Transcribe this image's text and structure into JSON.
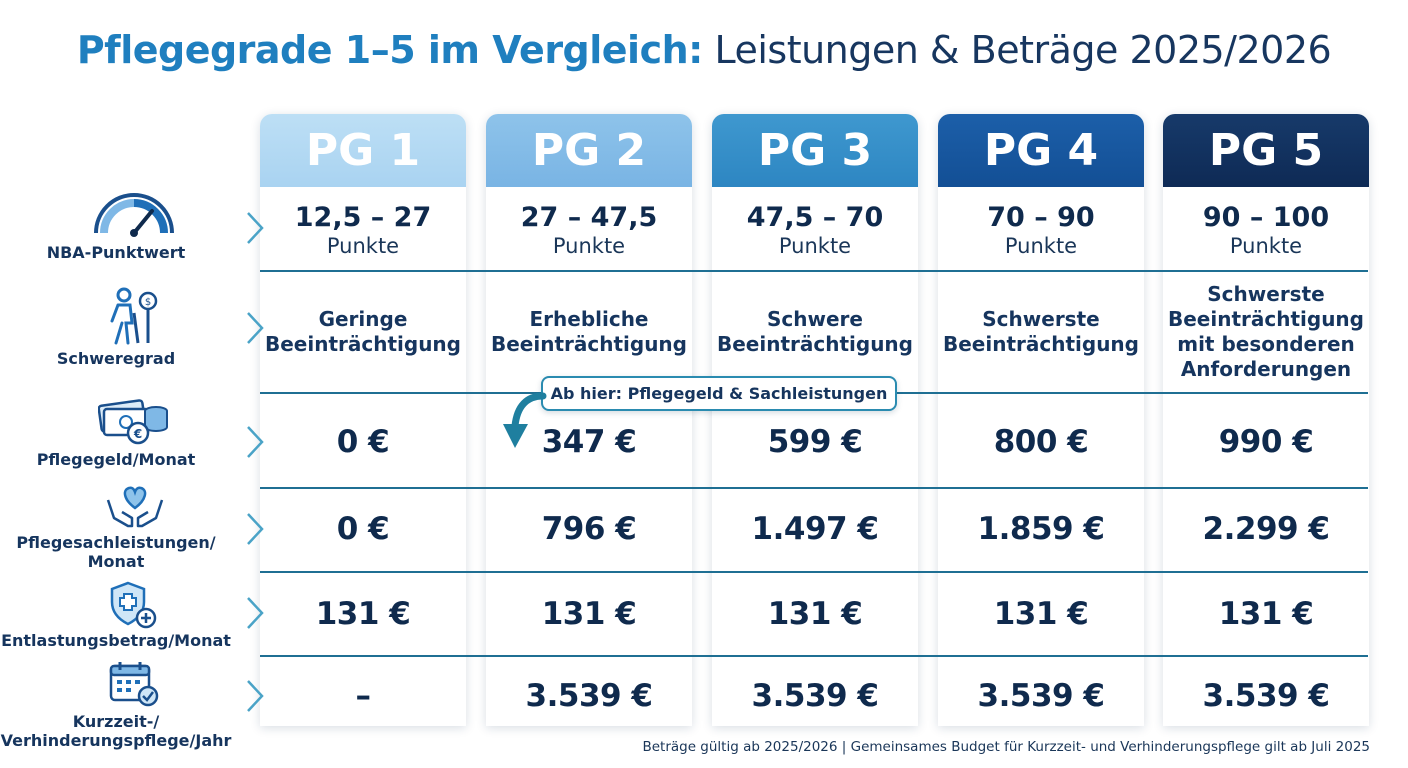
{
  "title": {
    "part1": "Pflegegrade 1–5 im Vergleich:",
    "part2": "Leistungen & Beträge 2025/2026"
  },
  "columns": [
    {
      "label": "PG 1",
      "points": "12,5 – 27",
      "points_unit": "Punkte",
      "severity": [
        "Geringe",
        "Beeinträchtigung"
      ],
      "pflegegeld": "0 €",
      "sachleistungen": "0 €",
      "entlastung": "131 €",
      "kurzzeit": "–"
    },
    {
      "label": "PG 2",
      "points": "27 – 47,5",
      "points_unit": "Punkte",
      "severity": [
        "Erhebliche",
        "Beeinträchtigung"
      ],
      "pflegegeld": "347 €",
      "sachleistungen": "796 €",
      "entlastung": "131 €",
      "kurzzeit": "3.539 €"
    },
    {
      "label": "PG 3",
      "points": "47,5 – 70",
      "points_unit": "Punkte",
      "severity": [
        "Schwere",
        "Beeinträchtigung"
      ],
      "pflegegeld": "599 €",
      "sachleistungen": "1.497 €",
      "entlastung": "131 €",
      "kurzzeit": "3.539 €"
    },
    {
      "label": "PG 4",
      "points": "70 – 90",
      "points_unit": "Punkte",
      "severity": [
        "Schwerste",
        "Beeinträchtigung"
      ],
      "pflegegeld": "800 €",
      "sachleistungen": "1.859 €",
      "entlastung": "131 €",
      "kurzzeit": "3.539 €"
    },
    {
      "label": "PG 5",
      "points": "90 – 100",
      "points_unit": "Punkte",
      "severity": [
        "Schwerste",
        "Beeinträchtigung",
        "mit besonderen",
        "Anforderungen"
      ],
      "pflegegeld": "990 €",
      "sachleistungen": "2.299 €",
      "entlastung": "131 €",
      "kurzzeit": "3.539 €"
    }
  ],
  "rows": {
    "nba": "NBA-Punktwert",
    "schweregrad": "Schweregrad",
    "pflegegeld": "Pflegegeld/Monat",
    "sachleistungen": [
      "Pflegesachleistungen/",
      "Monat"
    ],
    "entlastung": "Entlastungsbetrag/Monat",
    "kurzzeit": [
      "Kurzzeit-/",
      "Verhinderungspflege/Jahr"
    ]
  },
  "icons": {
    "nba": "gauge-icon",
    "schweregrad": "elderly-person-icon",
    "pflegegeld": "money-coins-icon",
    "sachleistungen": "hands-heart-icon",
    "entlastung": "shield-cross-icon",
    "kurzzeit": "calendar-check-icon"
  },
  "callout": "Ab hier: Pflegegeld & Sachleistungen",
  "footnote": "Beträge gültig ab 2025/2026 | Gemeinsames Budget für Kurzzeit- und Verhinderungspflege gilt ab Juli 2025",
  "colors": {
    "pg1": "#a9d3f1",
    "pg2": "#79b4e4",
    "pg3": "#2d86c2",
    "pg4": "#134f95",
    "pg5": "#0e2a55",
    "title_accent": "#1f7fbf",
    "text_dark": "#0f2a4d",
    "line": "#1f6f93"
  }
}
